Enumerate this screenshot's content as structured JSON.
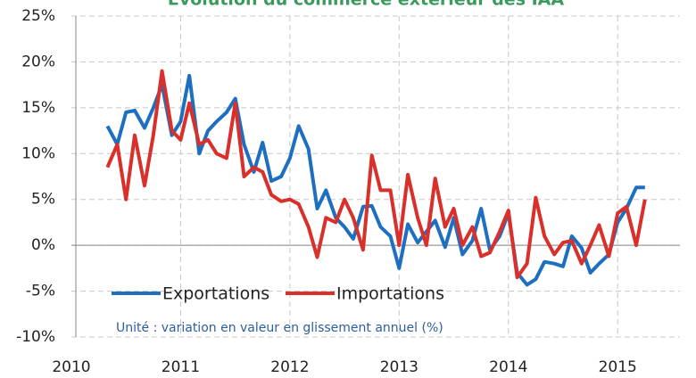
{
  "chart_data": {
    "type": "line",
    "title": "Evolution du commerce extérieur des IAA",
    "annotation": "Unité : variation en valeur en glissement annuel (%)",
    "x": [
      2010.33,
      2010.42,
      2010.5,
      2010.58,
      2010.67,
      2010.75,
      2010.83,
      2010.92,
      2011,
      2011.08,
      2011.17,
      2011.25,
      2011.33,
      2011.42,
      2011.5,
      2011.58,
      2011.67,
      2011.75,
      2011.83,
      2011.92,
      2012,
      2012.08,
      2012.17,
      2012.25,
      2012.33,
      2012.42,
      2012.5,
      2012.58,
      2012.67,
      2012.75,
      2012.83,
      2012.92,
      2013,
      2013.08,
      2013.17,
      2013.25,
      2013.33,
      2013.42,
      2013.5,
      2013.58,
      2013.67,
      2013.75,
      2013.83,
      2013.92,
      2014,
      2014.08,
      2014.17,
      2014.25,
      2014.33,
      2014.42,
      2014.5,
      2014.58,
      2014.67,
      2014.75,
      2014.83,
      2014.92,
      2015,
      2015.08,
      2015.17,
      2015.25
    ],
    "series": [
      {
        "name": "Exportations",
        "color": "#1f6fc0",
        "values": [
          13,
          11,
          14.5,
          14.7,
          12.8,
          15,
          17.5,
          12,
          13.5,
          18.5,
          10,
          12.5,
          13.5,
          14.5,
          16,
          11,
          8,
          11.2,
          7,
          7.5,
          9.5,
          13,
          10.5,
          4,
          6,
          3,
          2,
          0.7,
          4.2,
          4.3,
          2,
          1,
          -2.5,
          2.3,
          0.3,
          1.5,
          2.7,
          -0.2,
          3,
          -1,
          0.5,
          4,
          -0.5,
          1,
          3.5,
          -3,
          -4.3,
          -3.7,
          -1.8,
          -2,
          -2.3,
          1,
          -0.3,
          -3,
          -2,
          -1,
          2.5,
          4,
          6.3,
          6.3
        ]
      },
      {
        "name": "Importations",
        "color": "#d9302b",
        "values": [
          8.5,
          11,
          5,
          12,
          6.5,
          12,
          19,
          12.5,
          11.5,
          15.5,
          11,
          11.5,
          10,
          9.5,
          15.5,
          7.5,
          8.5,
          8,
          5.5,
          4.8,
          5,
          4.5,
          2,
          -1.3,
          3,
          2.5,
          5,
          3,
          -0.5,
          9.8,
          6,
          6,
          0,
          7.7,
          3,
          0,
          7.3,
          2,
          4,
          0,
          2,
          -1.2,
          -0.8,
          1.5,
          3.8,
          -3.5,
          -2,
          5.2,
          1,
          -1,
          0.3,
          0.5,
          -2,
          0,
          2.2,
          -1.2,
          3.5,
          4.2,
          0,
          5
        ]
      }
    ],
    "xlim": [
      2010,
      2015.57
    ],
    "xticks": [
      2010,
      2011,
      2012,
      2013,
      2014,
      2015
    ],
    "ylim": [
      -10,
      25
    ],
    "yticks": [
      {
        "value": -10,
        "label": "-10%"
      },
      {
        "value": -5,
        "label": "-5%"
      },
      {
        "value": 0,
        "label": "0%"
      },
      {
        "value": 5,
        "label": "5%"
      },
      {
        "value": 10,
        "label": "10%"
      },
      {
        "value": 15,
        "label": "15%"
      },
      {
        "value": 20,
        "label": "20%"
      },
      {
        "value": 25,
        "label": "25%"
      }
    ],
    "grid": true,
    "title_color": "#3a9a5c",
    "annotation_color": "#2e5e9e"
  }
}
